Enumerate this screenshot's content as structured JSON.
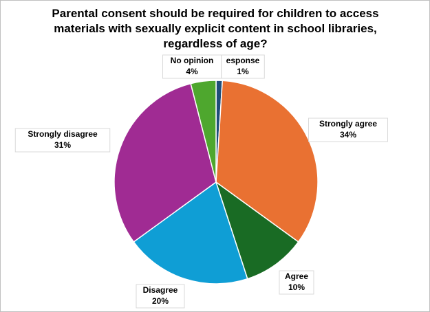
{
  "chart_data": {
    "type": "pie",
    "title": "Parental consent should be required for children to access materials with sexually explicit content in school libraries, regardless of age?",
    "categories": [
      "esponse",
      "Strongly agree",
      "Agree",
      "Disagree",
      "Strongly disagree",
      "No opinion"
    ],
    "values": [
      1,
      34,
      10,
      20,
      31,
      4
    ],
    "value_labels": [
      "1%",
      "34%",
      "10%",
      "20%",
      "31%",
      "4%"
    ],
    "colors": [
      "#1f4e79",
      "#e97132",
      "#196b24",
      "#0f9ed5",
      "#a02b93",
      "#4ea72e"
    ]
  }
}
